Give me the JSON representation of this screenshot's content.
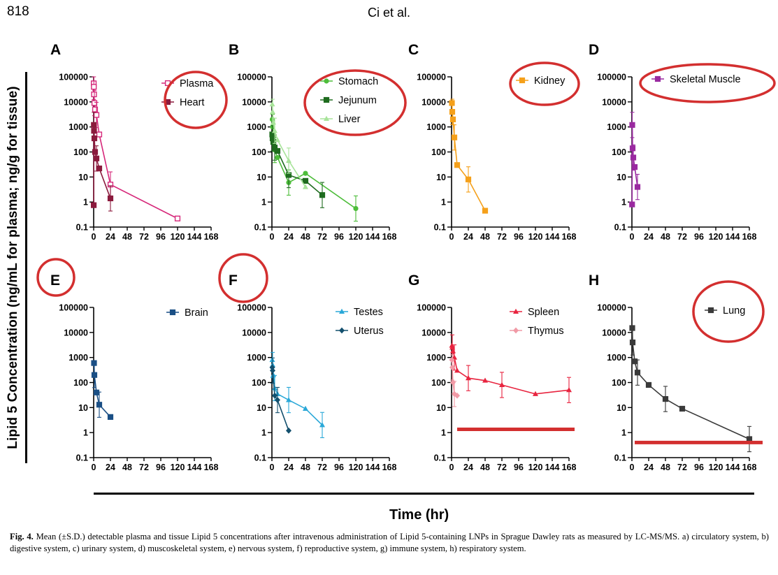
{
  "header": {
    "page_number": "818",
    "running_head": "Ci et al."
  },
  "y_axis_label": "Lipid 5 Concentration (ng/mL for plasma; ng/g for tissue)",
  "x_axis_label": "Time (hr)",
  "caption": {
    "label": "Fig. 4.",
    "text": "Mean (±S.D.) detectable plasma and tissue Lipid 5 concentrations after intravenous administration of Lipid 5-containing LNPs in Sprague Dawley rats as measured by LC-MS/MS. a) circulatory system, b) digestive system, c) urinary system, d) muscoskeletal system, e) nervous system, f) reproductive system, g) immune system, h) respiratory system."
  },
  "annotation_color": "#d32f2f",
  "chart_data": [
    {
      "panel": "A",
      "type": "line",
      "yscale": "log",
      "xlim": [
        0,
        168
      ],
      "ylim": [
        0.1,
        100000
      ],
      "x_ticks": [
        "0",
        "24",
        "48",
        "72",
        "96",
        "120",
        "144",
        "168"
      ],
      "y_ticks": [
        "0.1",
        "1",
        "10",
        "100",
        "1000",
        "10000",
        "100000"
      ],
      "legend_circled": true,
      "series": [
        {
          "name": "Plasma",
          "color": "#d6287a",
          "marker": "square-open",
          "x": [
            0.083,
            0.25,
            0.5,
            1,
            2,
            4,
            8,
            24,
            120
          ],
          "y": [
            55000,
            40000,
            20000,
            9000,
            5000,
            3000,
            500,
            5,
            0.22
          ]
        },
        {
          "name": "Heart",
          "color": "#8b1a3d",
          "marker": "square",
          "x": [
            0.083,
            0.25,
            0.5,
            1,
            2,
            4,
            8,
            24
          ],
          "y": [
            0.75,
            1200,
            700,
            350,
            100,
            55,
            22,
            1.4
          ]
        }
      ]
    },
    {
      "panel": "B",
      "type": "line",
      "yscale": "log",
      "xlim": [
        0,
        168
      ],
      "ylim": [
        0.1,
        100000
      ],
      "x_ticks": [
        "0",
        "24",
        "48",
        "72",
        "96",
        "120",
        "144",
        "168"
      ],
      "y_ticks": [
        "0.1",
        "1",
        "10",
        "100",
        "1000",
        "10000",
        "100000"
      ],
      "legend_circled": true,
      "series": [
        {
          "name": "Stomach",
          "color": "#4dbd3a",
          "marker": "circle",
          "x": [
            0.5,
            1,
            2,
            4,
            8,
            24,
            48,
            120
          ],
          "y": [
            2000,
            1000,
            300,
            120,
            60,
            6,
            14,
            0.55
          ]
        },
        {
          "name": "Jejunum",
          "color": "#1e6b1e",
          "marker": "square",
          "x": [
            0.5,
            1,
            2,
            4,
            8,
            24,
            48,
            72
          ],
          "y": [
            500,
            350,
            250,
            150,
            110,
            12,
            7,
            1.9
          ]
        },
        {
          "name": "Liver",
          "color": "#a8e49a",
          "marker": "triangle",
          "x": [
            0.5,
            1,
            2,
            4,
            8,
            24,
            48
          ],
          "y": [
            8000,
            4000,
            1500,
            700,
            300,
            45,
            4
          ]
        }
      ]
    },
    {
      "panel": "C",
      "type": "line",
      "yscale": "log",
      "xlim": [
        0,
        168
      ],
      "ylim": [
        0.1,
        100000
      ],
      "x_ticks": [
        "0",
        "24",
        "48",
        "72",
        "96",
        "120",
        "144",
        "168"
      ],
      "y_ticks": [
        "0.1",
        "1",
        "10",
        "100",
        "1000",
        "10000",
        "100000"
      ],
      "legend_circled": true,
      "series": [
        {
          "name": "Kidney",
          "color": "#f5a01a",
          "marker": "square",
          "x": [
            0.5,
            1,
            2,
            4,
            8,
            24,
            48
          ],
          "y": [
            9000,
            4000,
            2000,
            380,
            30,
            8,
            0.45
          ]
        }
      ]
    },
    {
      "panel": "D",
      "type": "line",
      "yscale": "log",
      "xlim": [
        0,
        168
      ],
      "ylim": [
        0.1,
        100000
      ],
      "x_ticks": [
        "0",
        "24",
        "48",
        "72",
        "96",
        "120",
        "144",
        "168"
      ],
      "y_ticks": [
        "0.1",
        "1",
        "10",
        "100",
        "1000",
        "10000",
        "100000"
      ],
      "legend_circled": true,
      "series": [
        {
          "name": "Skeletal Muscle",
          "color": "#9a2aa0",
          "marker": "square",
          "x": [
            0.25,
            0.5,
            1,
            2,
            4,
            8
          ],
          "y": [
            0.8,
            1200,
            140,
            60,
            25,
            4
          ]
        }
      ]
    },
    {
      "panel": "E",
      "type": "line",
      "yscale": "log",
      "xlim": [
        0,
        168
      ],
      "ylim": [
        0.1,
        100000
      ],
      "x_ticks": [
        "0",
        "24",
        "48",
        "72",
        "96",
        "120",
        "144",
        "168"
      ],
      "y_ticks": [
        "0.1",
        "1",
        "10",
        "100",
        "1000",
        "10000",
        "100000"
      ],
      "label_circled": true,
      "series": [
        {
          "name": "Brain",
          "color": "#1a4f85",
          "marker": "square",
          "x": [
            0.5,
            1,
            4,
            8,
            24
          ],
          "y": [
            600,
            200,
            40,
            13,
            4.2
          ]
        }
      ]
    },
    {
      "panel": "F",
      "type": "line",
      "yscale": "log",
      "xlim": [
        0,
        168
      ],
      "ylim": [
        0.1,
        100000
      ],
      "x_ticks": [
        "0",
        "24",
        "48",
        "72",
        "96",
        "120",
        "144",
        "168"
      ],
      "y_ticks": [
        "0.1",
        "1",
        "10",
        "100",
        "1000",
        "10000",
        "100000"
      ],
      "label_circled": true,
      "series": [
        {
          "name": "Testes",
          "color": "#2aa8d8",
          "marker": "triangle",
          "x": [
            0.5,
            1,
            2,
            4,
            8,
            24,
            48,
            72
          ],
          "y": [
            800,
            500,
            200,
            60,
            35,
            20,
            9,
            2
          ]
        },
        {
          "name": "Uterus",
          "color": "#14506e",
          "marker": "diamond",
          "x": [
            0.5,
            1,
            4,
            8,
            24
          ],
          "y": [
            400,
            300,
            30,
            20,
            1.2
          ]
        }
      ]
    },
    {
      "panel": "G",
      "type": "line",
      "yscale": "log",
      "xlim": [
        0,
        168
      ],
      "ylim": [
        0.1,
        100000
      ],
      "x_ticks": [
        "0",
        "24",
        "48",
        "72",
        "96",
        "120",
        "144",
        "168"
      ],
      "y_ticks": [
        "0.1",
        "1",
        "10",
        "100",
        "1000",
        "10000",
        "100000"
      ],
      "reference_line_y": 1.35,
      "series": [
        {
          "name": "Spleen",
          "color": "#e8243f",
          "marker": "triangle",
          "x": [
            0.5,
            1,
            2,
            4,
            8,
            24,
            48,
            72,
            120,
            168
          ],
          "y": [
            3000,
            2500,
            1800,
            1000,
            300,
            150,
            120,
            80,
            35,
            50
          ]
        },
        {
          "name": "Thymus",
          "color": "#f19aa6",
          "marker": "diamond",
          "x": [
            0.5,
            1,
            2,
            4,
            8
          ],
          "y": [
            800,
            400,
            100,
            35,
            30
          ]
        }
      ]
    },
    {
      "panel": "H",
      "type": "line",
      "yscale": "log",
      "xlim": [
        0,
        168
      ],
      "ylim": [
        0.1,
        100000
      ],
      "x_ticks": [
        "0",
        "24",
        "48",
        "72",
        "96",
        "120",
        "144",
        "168"
      ],
      "y_ticks": [
        "0.1",
        "1",
        "10",
        "100",
        "1000",
        "10000",
        "100000"
      ],
      "legend_circled": true,
      "reference_line_y": 0.4,
      "series": [
        {
          "name": "Lung",
          "color": "#3a3a3a",
          "marker": "square",
          "x": [
            0.5,
            1,
            4,
            8,
            24,
            48,
            72,
            168
          ],
          "y": [
            15000,
            4000,
            700,
            250,
            80,
            22,
            9,
            0.55
          ]
        }
      ]
    }
  ]
}
